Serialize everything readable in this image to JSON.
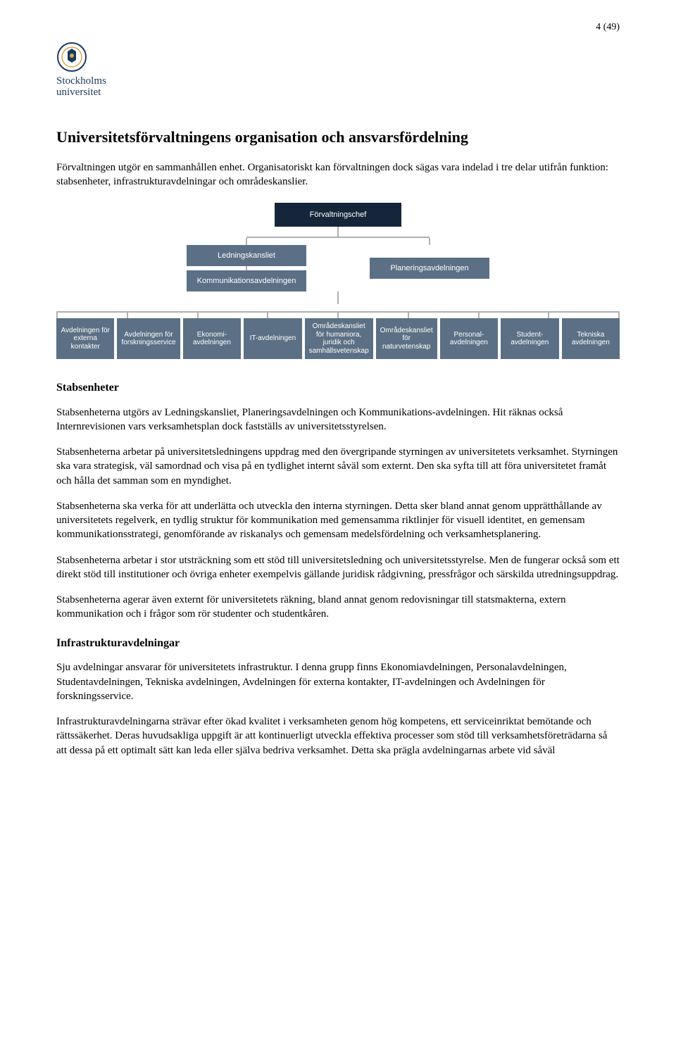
{
  "page_number": "4 (49)",
  "logo": {
    "name": "Stockholms",
    "sub": "universitet",
    "color": "#1b3a5c"
  },
  "heading": "Universitetsförvaltningens organisation och ansvarsfördelning",
  "intro": [
    "Förvaltningen utgör en sammanhållen enhet. Organisatoriskt kan förvaltningen dock sägas vara indelad i tre delar utifrån funktion: stabsenheter, infrastrukturavdelningar och områdeskanslier."
  ],
  "orgchart": {
    "type": "tree",
    "colors": {
      "root_bg": "#16263a",
      "node_bg": "#5b7085",
      "line": "#b0b0b0",
      "node_text": "#ffffff"
    },
    "root": "Förvaltningschef",
    "mid_left": [
      "Ledningskansliet",
      "Kommunikationsavdelningen"
    ],
    "mid_right": [
      "Planeringsavdelningen"
    ],
    "leaves": [
      "Avdelningen för externa kontakter",
      "Avdelningen för forskningsservice",
      "Ekonomi-avdelningen",
      "IT-avdelningen",
      "Områdeskansliet för humaniora, juridik och samhällsvetenskap",
      "Områdeskansliet för naturvetenskap",
      "Personal-avdelningen",
      "Student-avdelningen",
      "Tekniska avdelningen"
    ]
  },
  "sections": {
    "stabs_heading": "Stabsenheter",
    "stabs_paras": [
      "Stabsenheterna utgörs av Ledningskansliet, Planeringsavdelningen och Kommunikations-avdelningen. Hit räknas också Internrevisionen vars verksamhetsplan dock fastställs av universitetsstyrelsen.",
      "Stabsenheterna arbetar på universitetsledningens uppdrag med den övergripande styrningen av universitetets verksamhet. Styrningen ska vara strategisk, väl samordnad och visa på en tydlighet internt såväl som externt. Den ska syfta till att föra universitetet framåt och hålla det samman som en myndighet.",
      "Stabsenheterna ska verka för att underlätta och utveckla den interna styrningen. Detta sker bland annat genom upprätthållande av universitetets regelverk, en tydlig struktur för kommunikation med gemensamma riktlinjer för visuell identitet, en gemensam kommunikationsstrategi, genomförande av riskanalys och gemensam medelsfördelning och verksamhetsplanering.",
      "Stabsenheterna arbetar i stor utsträckning som ett stöd till universitetsledning och universitetsstyrelse. Men de fungerar också som ett direkt stöd till institutioner och övriga enheter exempelvis gällande juridisk rådgivning, pressfrågor och särskilda utredningsuppdrag.",
      "Stabsenheterna agerar även externt för universitetets räkning, bland annat genom redovisningar till statsmakterna, extern kommunikation och i frågor som rör studenter och studentkåren."
    ],
    "infra_heading": "Infrastrukturavdelningar",
    "infra_paras": [
      "Sju avdelningar ansvarar för universitetets infrastruktur. I denna grupp finns Ekonomiavdelningen, Personalavdelningen, Studentavdelningen, Tekniska avdelningen, Avdelningen för externa kontakter, IT-avdelningen och Avdelningen för forskningsservice.",
      "Infrastrukturavdelningarna strävar efter ökad kvalitet i verksamheten genom hög kompetens, ett serviceinriktat bemötande och rättssäkerhet. Deras huvudsakliga uppgift är att kontinuerligt utveckla effektiva processer som stöd till verksamhetsföreträdarna så att dessa på ett optimalt sätt kan leda eller själva bedriva verksamhet. Detta ska prägla avdelningarnas arbete vid såväl"
    ]
  }
}
